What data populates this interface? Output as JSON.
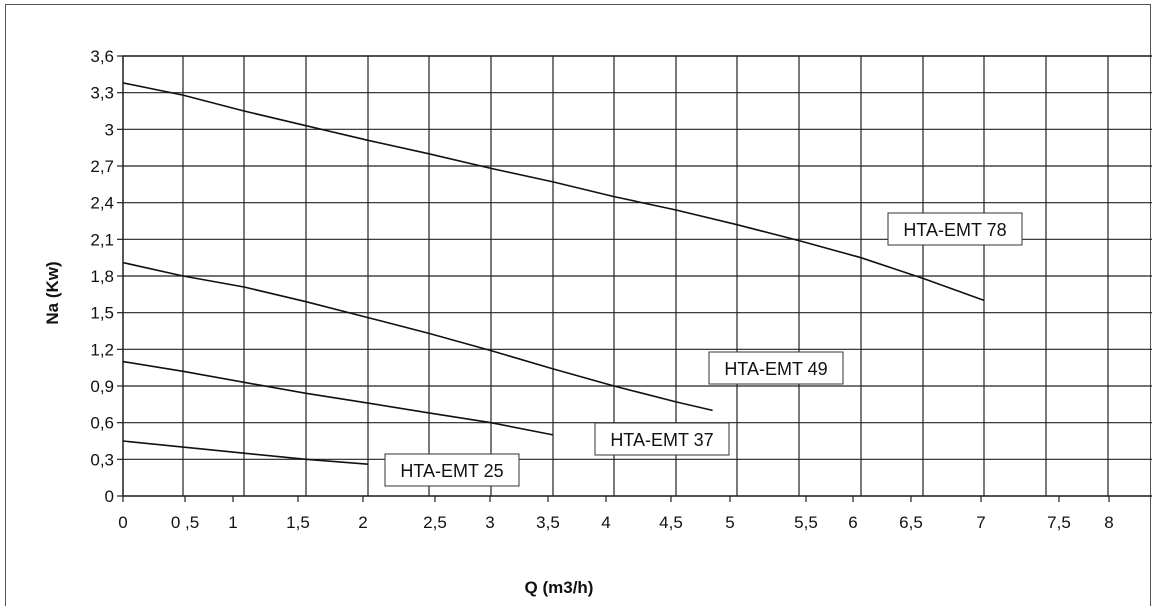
{
  "chart_data": {
    "type": "line",
    "title": "",
    "xlabel": "Q (m3/h)",
    "ylabel": "Na (Kw)",
    "xlim": [
      0,
      8
    ],
    "ylim": [
      0,
      3.6
    ],
    "grid": true,
    "x_ticks": [
      {
        "label": "0",
        "slot": 0
      },
      {
        "label": "0 ,5",
        "slot": 0.5
      },
      {
        "label": "1",
        "slot": 1
      },
      {
        "label": "1,5",
        "slot": 1.5
      },
      {
        "label": "2",
        "slot": 2
      },
      {
        "label": "2,5",
        "slot": 2.5
      },
      {
        "label": "3",
        "slot": 3
      },
      {
        "label": "3,5",
        "slot": 3.5
      },
      {
        "label": "4",
        "slot": 4
      },
      {
        "label": "4,5",
        "slot": 4.5
      },
      {
        "label": "5",
        "slot": 5
      },
      {
        "label": "5,5",
        "slot": 5.5
      },
      {
        "label": "6",
        "slot": 6
      },
      {
        "label": "6,5",
        "slot": 6.5
      },
      {
        "label": "7",
        "slot": 7
      },
      {
        "label": "7,5",
        "slot": 7.5
      },
      {
        "label": "8",
        "slot": 8
      }
    ],
    "y_ticks": [
      {
        "label": "0",
        "value": 0
      },
      {
        "label": "0,3",
        "value": 0.3
      },
      {
        "label": "0,6",
        "value": 0.6
      },
      {
        "label": "0,9",
        "value": 0.9
      },
      {
        "label": "1,2",
        "value": 1.2
      },
      {
        "label": "1,5",
        "value": 1.5
      },
      {
        "label": "1,8",
        "value": 1.8
      },
      {
        "label": "2,1",
        "value": 2.1
      },
      {
        "label": "2,4",
        "value": 2.4
      },
      {
        "label": "2,7",
        "value": 2.7
      },
      {
        "label": "3",
        "value": 3
      },
      {
        "label": "3,3",
        "value": 3.3
      },
      {
        "label": "3,6",
        "value": 3.6
      }
    ],
    "series": [
      {
        "name": "HTA-EMT 78",
        "x": [
          0,
          0.5,
          1,
          1.5,
          2,
          2.5,
          3,
          3.5,
          4,
          4.5,
          5,
          5.5,
          6,
          6.5,
          7
        ],
        "y": [
          3.38,
          3.28,
          3.15,
          3.03,
          2.91,
          2.8,
          2.68,
          2.57,
          2.45,
          2.34,
          2.22,
          2.09,
          1.95,
          1.78,
          1.6
        ]
      },
      {
        "name": "HTA-EMT 49",
        "x": [
          0,
          0.5,
          1,
          1.5,
          2,
          2.5,
          3,
          3.5,
          4,
          4.5,
          4.8
        ],
        "y": [
          1.91,
          1.8,
          1.71,
          1.59,
          1.46,
          1.33,
          1.19,
          1.04,
          0.9,
          0.77,
          0.7
        ]
      },
      {
        "name": "HTA-EMT 37",
        "x": [
          0,
          0.5,
          1,
          1.5,
          2,
          2.5,
          3,
          3.5
        ],
        "y": [
          1.1,
          1.02,
          0.93,
          0.84,
          0.76,
          0.68,
          0.6,
          0.5
        ]
      },
      {
        "name": "HTA-EMT 25",
        "x": [
          0,
          0.5,
          1,
          1.5,
          2
        ],
        "y": [
          0.45,
          0.4,
          0.35,
          0.3,
          0.26
        ]
      }
    ]
  }
}
